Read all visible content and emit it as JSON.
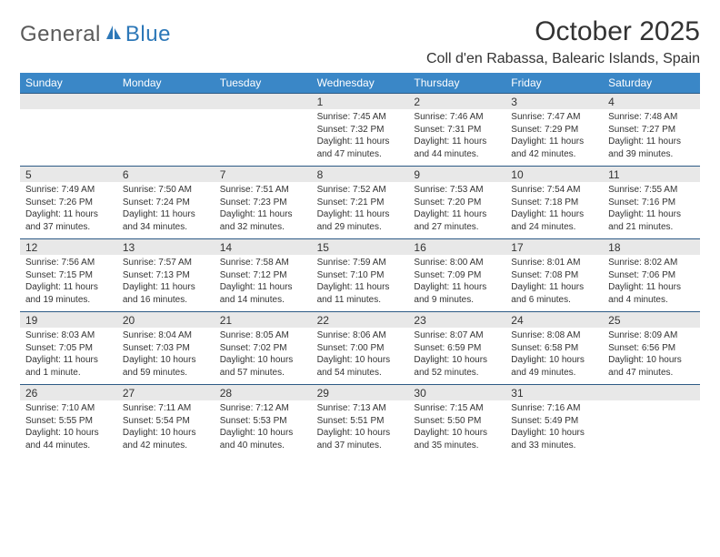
{
  "logo": {
    "general": "General",
    "blue": "Blue"
  },
  "title": "October 2025",
  "location": "Coll d'en Rabassa, Balearic Islands, Spain",
  "colors": {
    "header_bg": "#3a87c7",
    "header_text": "#ffffff",
    "daynum_bg": "#e8e8e8",
    "border": "#2d5a85",
    "logo_blue": "#2d78b8",
    "logo_gray": "#5a5a5a"
  },
  "weekdays": [
    "Sunday",
    "Monday",
    "Tuesday",
    "Wednesday",
    "Thursday",
    "Friday",
    "Saturday"
  ],
  "weeks": [
    [
      null,
      null,
      null,
      {
        "n": "1",
        "sr": "Sunrise: 7:45 AM",
        "ss": "Sunset: 7:32 PM",
        "d1": "Daylight: 11 hours",
        "d2": "and 47 minutes."
      },
      {
        "n": "2",
        "sr": "Sunrise: 7:46 AM",
        "ss": "Sunset: 7:31 PM",
        "d1": "Daylight: 11 hours",
        "d2": "and 44 minutes."
      },
      {
        "n": "3",
        "sr": "Sunrise: 7:47 AM",
        "ss": "Sunset: 7:29 PM",
        "d1": "Daylight: 11 hours",
        "d2": "and 42 minutes."
      },
      {
        "n": "4",
        "sr": "Sunrise: 7:48 AM",
        "ss": "Sunset: 7:27 PM",
        "d1": "Daylight: 11 hours",
        "d2": "and 39 minutes."
      }
    ],
    [
      {
        "n": "5",
        "sr": "Sunrise: 7:49 AM",
        "ss": "Sunset: 7:26 PM",
        "d1": "Daylight: 11 hours",
        "d2": "and 37 minutes."
      },
      {
        "n": "6",
        "sr": "Sunrise: 7:50 AM",
        "ss": "Sunset: 7:24 PM",
        "d1": "Daylight: 11 hours",
        "d2": "and 34 minutes."
      },
      {
        "n": "7",
        "sr": "Sunrise: 7:51 AM",
        "ss": "Sunset: 7:23 PM",
        "d1": "Daylight: 11 hours",
        "d2": "and 32 minutes."
      },
      {
        "n": "8",
        "sr": "Sunrise: 7:52 AM",
        "ss": "Sunset: 7:21 PM",
        "d1": "Daylight: 11 hours",
        "d2": "and 29 minutes."
      },
      {
        "n": "9",
        "sr": "Sunrise: 7:53 AM",
        "ss": "Sunset: 7:20 PM",
        "d1": "Daylight: 11 hours",
        "d2": "and 27 minutes."
      },
      {
        "n": "10",
        "sr": "Sunrise: 7:54 AM",
        "ss": "Sunset: 7:18 PM",
        "d1": "Daylight: 11 hours",
        "d2": "and 24 minutes."
      },
      {
        "n": "11",
        "sr": "Sunrise: 7:55 AM",
        "ss": "Sunset: 7:16 PM",
        "d1": "Daylight: 11 hours",
        "d2": "and 21 minutes."
      }
    ],
    [
      {
        "n": "12",
        "sr": "Sunrise: 7:56 AM",
        "ss": "Sunset: 7:15 PM",
        "d1": "Daylight: 11 hours",
        "d2": "and 19 minutes."
      },
      {
        "n": "13",
        "sr": "Sunrise: 7:57 AM",
        "ss": "Sunset: 7:13 PM",
        "d1": "Daylight: 11 hours",
        "d2": "and 16 minutes."
      },
      {
        "n": "14",
        "sr": "Sunrise: 7:58 AM",
        "ss": "Sunset: 7:12 PM",
        "d1": "Daylight: 11 hours",
        "d2": "and 14 minutes."
      },
      {
        "n": "15",
        "sr": "Sunrise: 7:59 AM",
        "ss": "Sunset: 7:10 PM",
        "d1": "Daylight: 11 hours",
        "d2": "and 11 minutes."
      },
      {
        "n": "16",
        "sr": "Sunrise: 8:00 AM",
        "ss": "Sunset: 7:09 PM",
        "d1": "Daylight: 11 hours",
        "d2": "and 9 minutes."
      },
      {
        "n": "17",
        "sr": "Sunrise: 8:01 AM",
        "ss": "Sunset: 7:08 PM",
        "d1": "Daylight: 11 hours",
        "d2": "and 6 minutes."
      },
      {
        "n": "18",
        "sr": "Sunrise: 8:02 AM",
        "ss": "Sunset: 7:06 PM",
        "d1": "Daylight: 11 hours",
        "d2": "and 4 minutes."
      }
    ],
    [
      {
        "n": "19",
        "sr": "Sunrise: 8:03 AM",
        "ss": "Sunset: 7:05 PM",
        "d1": "Daylight: 11 hours",
        "d2": "and 1 minute."
      },
      {
        "n": "20",
        "sr": "Sunrise: 8:04 AM",
        "ss": "Sunset: 7:03 PM",
        "d1": "Daylight: 10 hours",
        "d2": "and 59 minutes."
      },
      {
        "n": "21",
        "sr": "Sunrise: 8:05 AM",
        "ss": "Sunset: 7:02 PM",
        "d1": "Daylight: 10 hours",
        "d2": "and 57 minutes."
      },
      {
        "n": "22",
        "sr": "Sunrise: 8:06 AM",
        "ss": "Sunset: 7:00 PM",
        "d1": "Daylight: 10 hours",
        "d2": "and 54 minutes."
      },
      {
        "n": "23",
        "sr": "Sunrise: 8:07 AM",
        "ss": "Sunset: 6:59 PM",
        "d1": "Daylight: 10 hours",
        "d2": "and 52 minutes."
      },
      {
        "n": "24",
        "sr": "Sunrise: 8:08 AM",
        "ss": "Sunset: 6:58 PM",
        "d1": "Daylight: 10 hours",
        "d2": "and 49 minutes."
      },
      {
        "n": "25",
        "sr": "Sunrise: 8:09 AM",
        "ss": "Sunset: 6:56 PM",
        "d1": "Daylight: 10 hours",
        "d2": "and 47 minutes."
      }
    ],
    [
      {
        "n": "26",
        "sr": "Sunrise: 7:10 AM",
        "ss": "Sunset: 5:55 PM",
        "d1": "Daylight: 10 hours",
        "d2": "and 44 minutes."
      },
      {
        "n": "27",
        "sr": "Sunrise: 7:11 AM",
        "ss": "Sunset: 5:54 PM",
        "d1": "Daylight: 10 hours",
        "d2": "and 42 minutes."
      },
      {
        "n": "28",
        "sr": "Sunrise: 7:12 AM",
        "ss": "Sunset: 5:53 PM",
        "d1": "Daylight: 10 hours",
        "d2": "and 40 minutes."
      },
      {
        "n": "29",
        "sr": "Sunrise: 7:13 AM",
        "ss": "Sunset: 5:51 PM",
        "d1": "Daylight: 10 hours",
        "d2": "and 37 minutes."
      },
      {
        "n": "30",
        "sr": "Sunrise: 7:15 AM",
        "ss": "Sunset: 5:50 PM",
        "d1": "Daylight: 10 hours",
        "d2": "and 35 minutes."
      },
      {
        "n": "31",
        "sr": "Sunrise: 7:16 AM",
        "ss": "Sunset: 5:49 PM",
        "d1": "Daylight: 10 hours",
        "d2": "and 33 minutes."
      },
      null
    ]
  ]
}
